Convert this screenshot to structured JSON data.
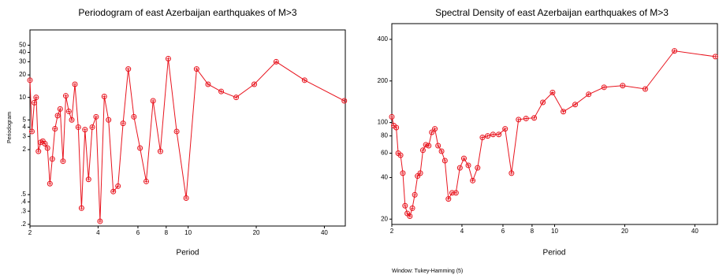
{
  "chart_data": [
    {
      "type": "line",
      "title": "Periodogram of east Azerbaijan earthquakes of M>3",
      "x_label": "Period",
      "y_label": "Periodogram",
      "log_x": true,
      "log_y": true,
      "color": "#e8141e",
      "x": [
        49,
        32.7,
        24.5,
        19.6,
        16.3,
        14,
        12.25,
        10.9,
        9.8,
        8.9,
        8.17,
        7.54,
        7,
        6.53,
        6.13,
        5.76,
        5.44,
        5.16,
        4.9,
        4.67,
        4.45,
        4.26,
        4.08,
        3.92,
        3.77,
        3.63,
        3.5,
        3.38,
        3.27,
        3.16,
        3.06,
        2.97,
        2.88,
        2.8,
        2.72,
        2.65,
        2.58,
        2.51,
        2.45,
        2.39,
        2.33,
        2.28,
        2.23,
        2.18,
        2.13,
        2.09,
        2.04,
        2.0
      ],
      "values": [
        9,
        17,
        30,
        15,
        10,
        12,
        15,
        24,
        0.45,
        3.5,
        33,
        1.9,
        9,
        0.75,
        2.1,
        5.5,
        24,
        4.5,
        0.65,
        0.55,
        5,
        10.3,
        0.22,
        5.5,
        4,
        0.8,
        3.7,
        0.33,
        4,
        15,
        5,
        6.5,
        10.5,
        1.4,
        7,
        5.7,
        3.8,
        1.5,
        0.7,
        2.1,
        2.4,
        2.6,
        2.5,
        1.9,
        10,
        8.5,
        3.5,
        17
      ],
      "xlim": [
        2,
        49.5
      ],
      "ylim": [
        0.19,
        80
      ],
      "xticks": [
        2,
        4,
        6,
        8,
        10,
        20,
        40
      ],
      "yticks": [
        50,
        40,
        30,
        20,
        10,
        5,
        4,
        3,
        2,
        {
          "value": 0.5,
          "label": ".5"
        },
        {
          "value": 0.4,
          "label": ".4"
        },
        {
          "value": 0.3,
          "label": ".3"
        },
        {
          "value": 0.2,
          "label": ".2"
        }
      ]
    },
    {
      "type": "line",
      "title": "Spectral Density of east Azerbaijan earthquakes of M>3",
      "x_label": "Period",
      "note": "Window: Tukey-Hamming (5)",
      "log_x": true,
      "log_y": true,
      "color": "#e8141e",
      "x": [
        49,
        32.7,
        24.5,
        19.6,
        16.3,
        14,
        12.25,
        10.9,
        9.8,
        8.9,
        8.17,
        7.54,
        7,
        6.53,
        6.13,
        5.76,
        5.44,
        5.16,
        4.9,
        4.67,
        4.45,
        4.26,
        4.08,
        3.92,
        3.77,
        3.63,
        3.5,
        3.38,
        3.27,
        3.16,
        3.06,
        2.97,
        2.88,
        2.8,
        2.72,
        2.65,
        2.58,
        2.51,
        2.45,
        2.39,
        2.33,
        2.28,
        2.23,
        2.18,
        2.13,
        2.09,
        2.04,
        2.0
      ],
      "values": [
        300,
        330,
        175,
        185,
        180,
        160,
        135,
        120,
        165,
        140,
        108,
        107,
        105,
        43,
        90,
        82,
        82,
        80,
        78,
        47,
        38,
        49,
        55,
        47,
        31,
        31,
        28,
        53,
        62,
        68,
        90,
        85,
        68,
        69,
        63,
        43,
        41,
        30,
        24,
        21,
        22,
        25,
        43,
        58,
        60,
        92,
        95,
        110
      ],
      "xlim": [
        2,
        50
      ],
      "ylim": [
        18.3,
        520
      ],
      "xticks": [
        2,
        4,
        6,
        8,
        10,
        20,
        40
      ],
      "yticks": [
        20,
        40,
        60,
        80,
        100,
        200,
        400
      ]
    }
  ]
}
